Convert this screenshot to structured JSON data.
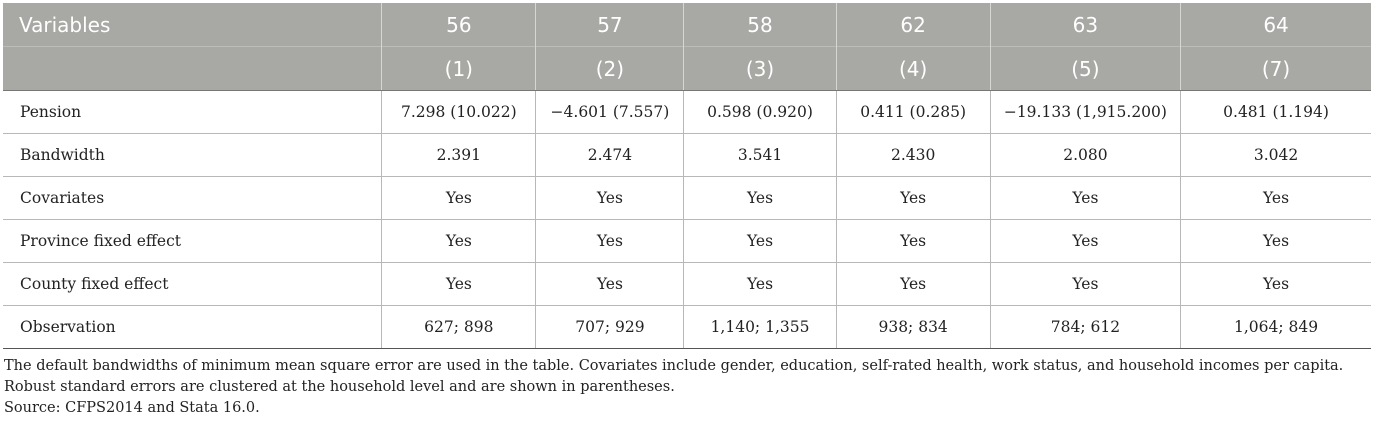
{
  "table": {
    "header_row1": [
      "Variables",
      "56",
      "57",
      "58",
      "62",
      "63",
      "64"
    ],
    "header_row2": [
      "",
      "(1)",
      "(2)",
      "(3)",
      "(4)",
      "(5)",
      "(7)"
    ],
    "rows": [
      [
        "Pension",
        "7.298 (10.022)",
        "−4.601 (7.557)",
        "0.598 (0.920)",
        "0.411 (0.285)",
        "−19.133 (1,915.200)",
        "0.481 (1.194)"
      ],
      [
        "Bandwidth",
        "2.391",
        "2.474",
        "3.541",
        "2.430",
        "2.080",
        "3.042"
      ],
      [
        "Covariates",
        "Yes",
        "Yes",
        "Yes",
        "Yes",
        "Yes",
        "Yes"
      ],
      [
        "Province fixed effect",
        "Yes",
        "Yes",
        "Yes",
        "Yes",
        "Yes",
        "Yes"
      ],
      [
        "County fixed effect",
        "Yes",
        "Yes",
        "Yes",
        "Yes",
        "Yes",
        "Yes"
      ],
      [
        "Observation",
        "627; 898",
        "707; 929",
        "1,140; 1,355",
        "938; 834",
        "784; 612",
        "1,064; 849"
      ]
    ]
  },
  "notes": {
    "footnote": "The default bandwidths of minimum mean square error are used in the table. Covariates include gender, education, self-rated health, work status, and household incomes per capita. Robust standard errors are clustered at the household level and are shown in parentheses.",
    "source": "Source: CFPS2014 and Stata 16.0."
  },
  "colors": {
    "header_bg": "#a8a8a4",
    "header_text": "#ffffff",
    "row_border": "#b8b8b8"
  }
}
